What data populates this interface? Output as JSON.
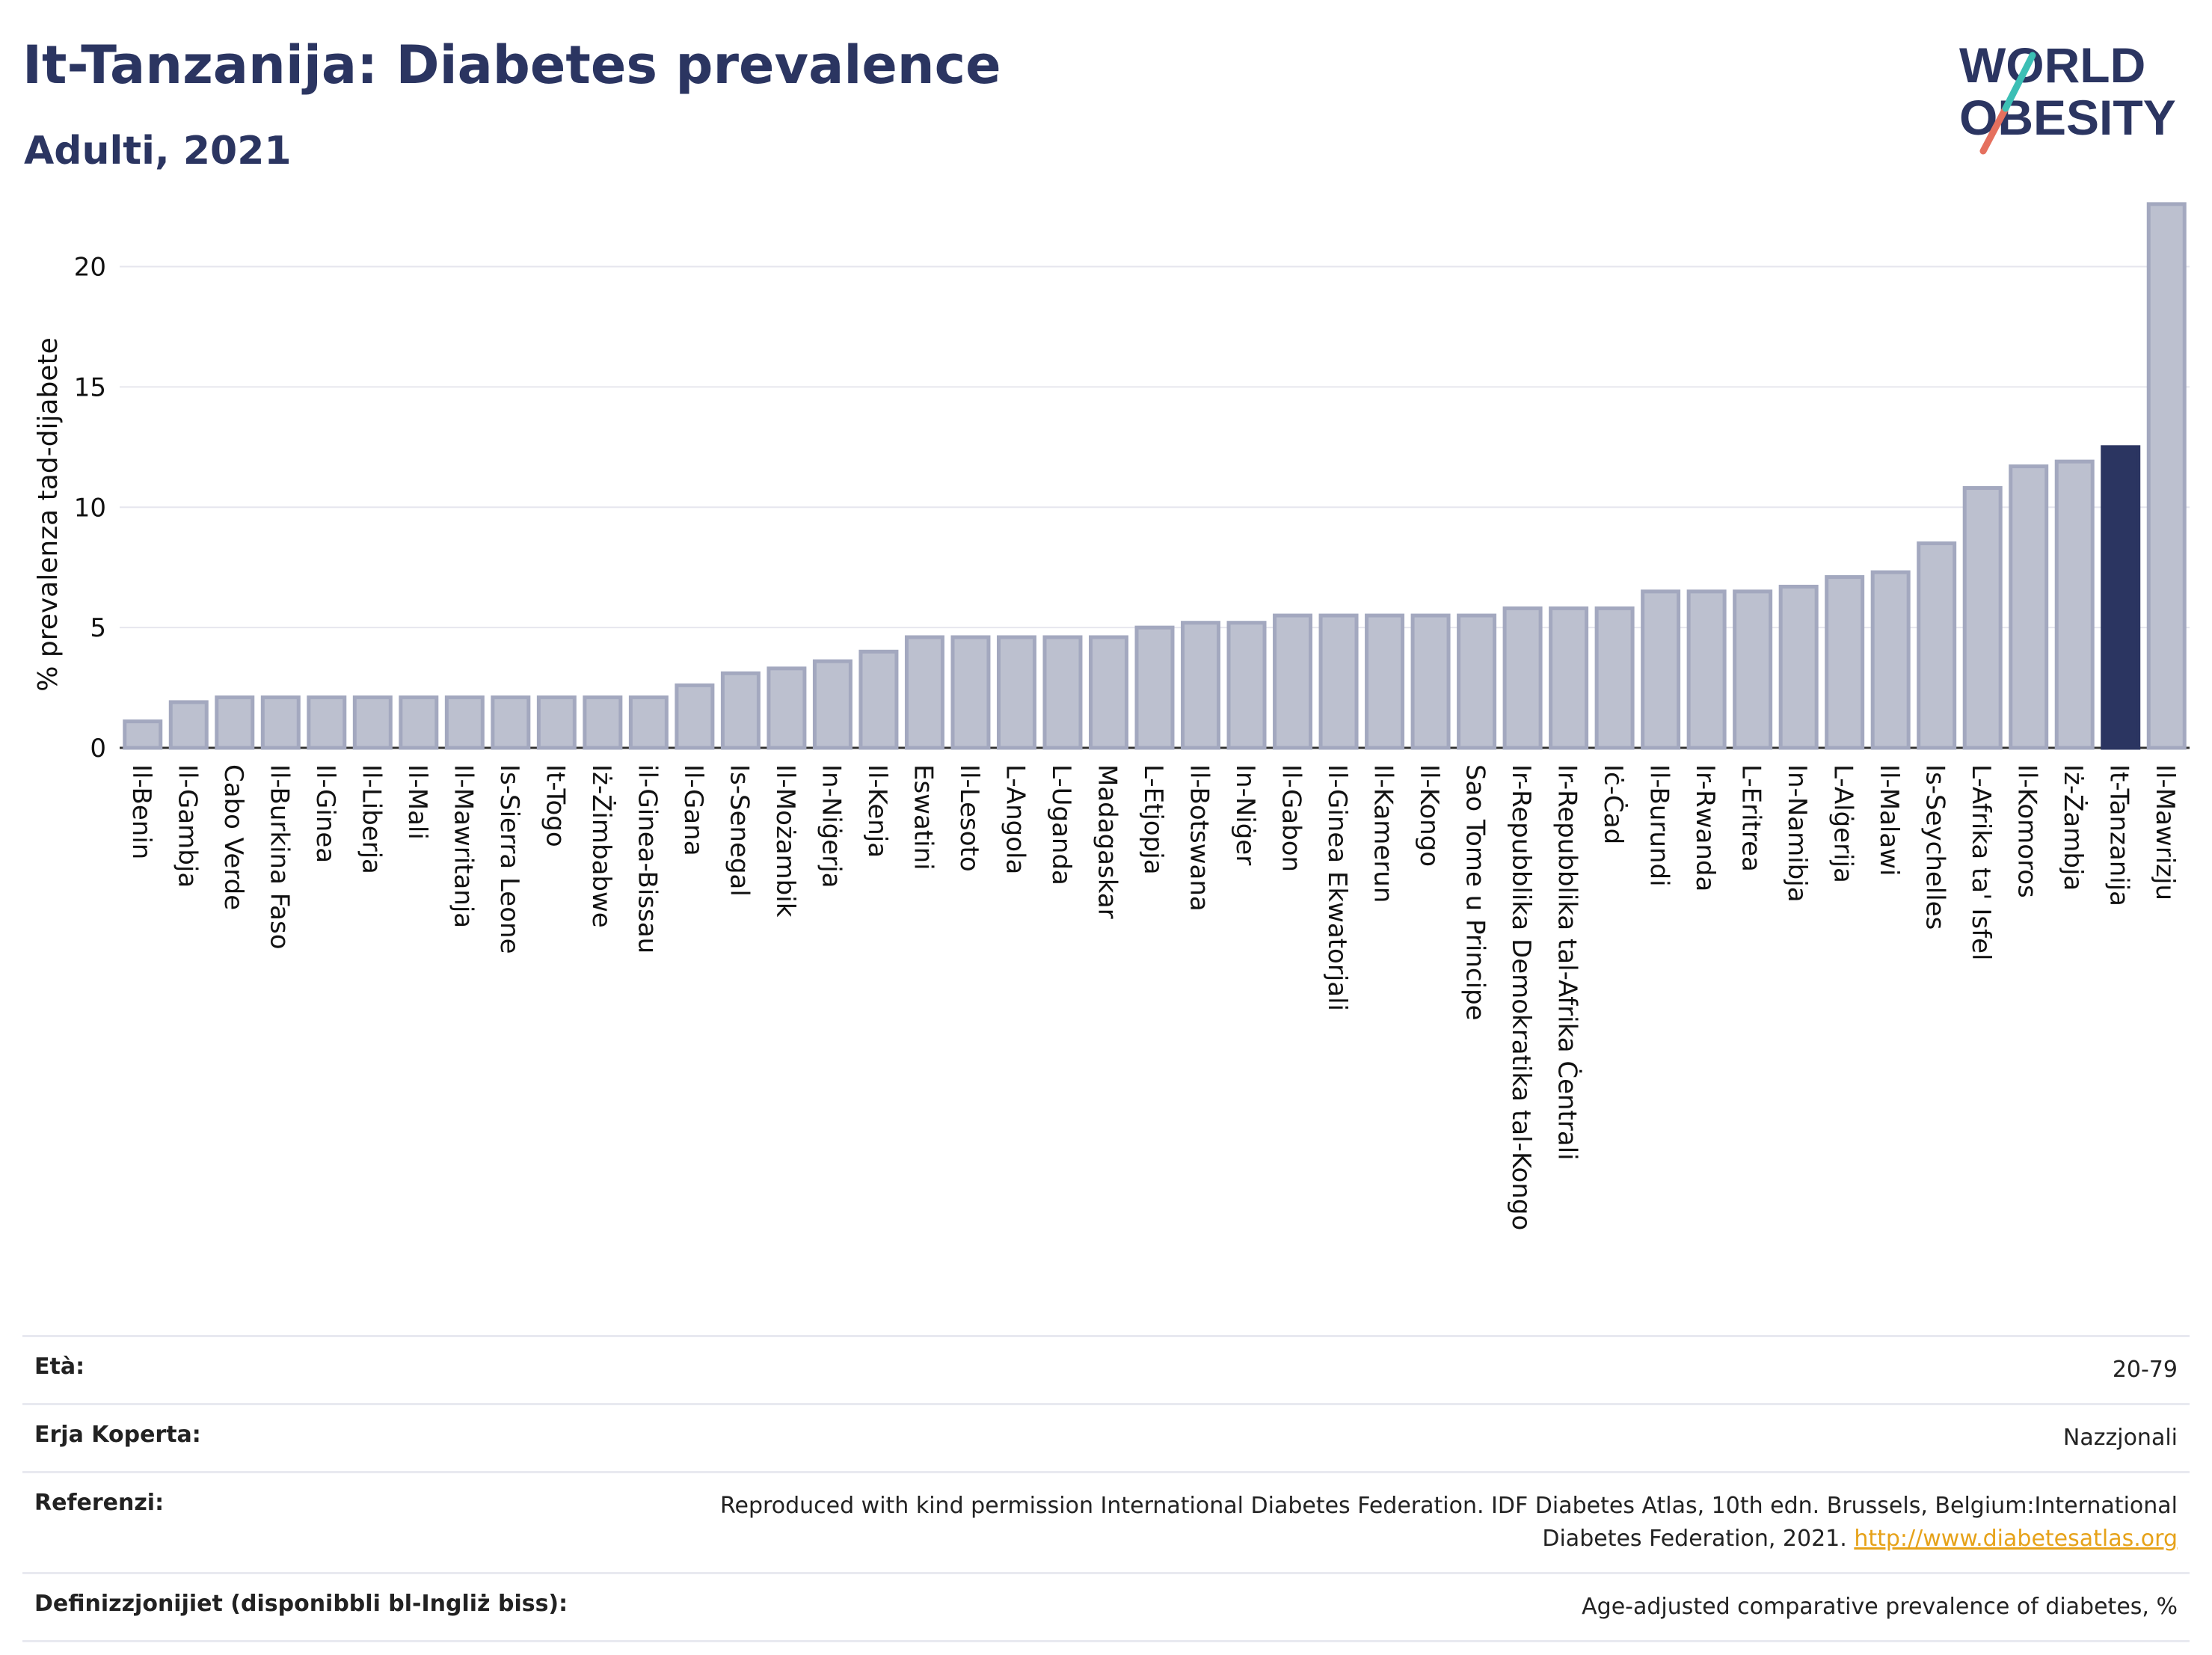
{
  "header": {
    "title": "It-Tanzanija: Diabetes prevalence",
    "subtitle": "Adulti, 2021"
  },
  "logo": {
    "line1": "WORLD",
    "line2": "OBESITY"
  },
  "colors": {
    "bar": "#bcc0cf",
    "bar_border": "#a3a8bf",
    "highlight": "#2b3561",
    "grid": "#e6e6ee"
  },
  "chart_data": {
    "type": "bar",
    "ylabel": "% prevalenza tad-dijabete",
    "ylim": [
      0,
      23
    ],
    "yticks": [
      0,
      5,
      10,
      15,
      20
    ],
    "highlight": "It-Tanzanija",
    "categories": [
      "Il-Benin",
      "Il-Gambja",
      "Cabo Verde",
      "Il-Burkina Faso",
      "Il-Ginea",
      "Il-Liberja",
      "Il-Mali",
      "Il-Mawritanja",
      "Is-Sierra Leone",
      "It-Togo",
      "Iż-Żimbabwe",
      "il-Ginea-Bissau",
      "Il-Gana",
      "Is-Senegal",
      "Il-Możambik",
      "In-Niġerja",
      "Il-Kenja",
      "Eswatini",
      "Il-Lesoto",
      "L-Angola",
      "L-Uganda",
      "Madagaskar",
      "L-Etjopja",
      "Il-Botswana",
      "In-Niġer",
      "Il-Gabon",
      "Il-Ginea Ekwatorjali",
      "Il-Kamerun",
      "Il-Kongo",
      "Sao Tome u Principe",
      "Ir-Repubblika Demokratika tal-Kongo",
      "Ir-Repubblika tal-Afrika Ċentrali",
      "Iċ-Ċad",
      "Il-Burundi",
      "Ir-Rwanda",
      "L-Eritrea",
      "In-Namibja",
      "L-Alġerija",
      "Il-Malawi",
      "Is-Seychelles",
      "L-Afrika ta' Isfel",
      "Il-Komoros",
      "Iż-Żambja",
      "It-Tanzanija",
      "Il-Mawrizju"
    ],
    "values": [
      1.1,
      1.9,
      2.1,
      2.1,
      2.1,
      2.1,
      2.1,
      2.1,
      2.1,
      2.1,
      2.1,
      2.1,
      2.6,
      3.1,
      3.3,
      3.6,
      4.0,
      4.6,
      4.6,
      4.6,
      4.6,
      4.6,
      5.0,
      5.2,
      5.2,
      5.5,
      5.5,
      5.5,
      5.5,
      5.5,
      5.8,
      5.8,
      5.8,
      6.5,
      6.5,
      6.5,
      6.7,
      7.1,
      7.3,
      8.5,
      10.8,
      11.7,
      11.9,
      12.5,
      22.6
    ]
  },
  "info": {
    "rows": [
      {
        "label": "Età:",
        "value": "20-79"
      },
      {
        "label": "Erja Koperta:",
        "value": "Nazzjonali"
      },
      {
        "label": "Referenzi:",
        "value": "Reproduced with kind permission International Diabetes Federation.  IDF Diabetes Atlas, 10th edn. Brussels, Belgium:International Diabetes Federation, 2021.",
        "link": "http://www.diabetesatlas.org"
      },
      {
        "label": "Definizzjonijiet (disponibbli bl-Ingliż biss):",
        "value": "Age-adjusted comparative prevalence of diabetes, %"
      }
    ]
  }
}
